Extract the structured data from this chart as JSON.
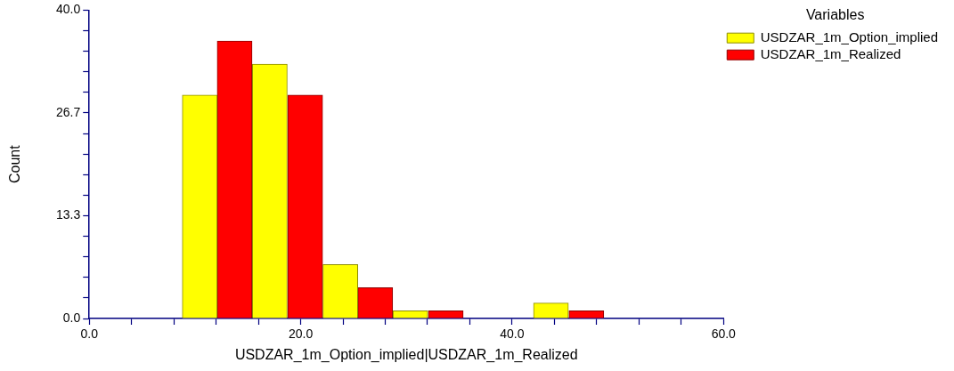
{
  "chart_data": {
    "type": "histogram",
    "xlabel": "USDZAR_1m_Option_implied|USDZAR_1m_Realized",
    "ylabel": "Count",
    "legend_title": "Variables",
    "legend": "top right",
    "bins": [
      8.8,
      15.4,
      22.1,
      28.7,
      35.4,
      42.0,
      48.7
    ],
    "series": [
      {
        "name": "USDZAR_1m_Option_implied",
        "color": "#ffff00",
        "values": [
          29,
          33,
          7,
          1,
          0,
          2
        ]
      },
      {
        "name": "USDZAR_1m_Realized",
        "color": "#ff0000",
        "values": [
          36,
          29,
          4,
          1,
          0,
          1
        ]
      }
    ],
    "xlim": [
      0,
      60
    ],
    "xticks": [
      {
        "value": 0,
        "label": "0.0"
      },
      {
        "value": 4,
        "label": null
      },
      {
        "value": 8,
        "label": null
      },
      {
        "value": 12,
        "label": null
      },
      {
        "value": 16,
        "label": null
      },
      {
        "value": 20,
        "label": "20.0"
      },
      {
        "value": 24,
        "label": null
      },
      {
        "value": 28,
        "label": null
      },
      {
        "value": 32,
        "label": null
      },
      {
        "value": 36,
        "label": null
      },
      {
        "value": 40,
        "label": "40.0"
      },
      {
        "value": 44,
        "label": null
      },
      {
        "value": 48,
        "label": null
      },
      {
        "value": 52,
        "label": null
      },
      {
        "value": 56,
        "label": null
      },
      {
        "value": 60,
        "label": "60.0"
      }
    ],
    "ylim": [
      0,
      40
    ],
    "yticks": [
      {
        "value": 0,
        "label": "0.0"
      },
      {
        "value": 2.67,
        "label": null
      },
      {
        "value": 5.33,
        "label": null
      },
      {
        "value": 8,
        "label": null
      },
      {
        "value": 10.67,
        "label": null
      },
      {
        "value": 13.33,
        "label": "13.3"
      },
      {
        "value": 16,
        "label": null
      },
      {
        "value": 18.67,
        "label": null
      },
      {
        "value": 21.33,
        "label": null
      },
      {
        "value": 24,
        "label": null
      },
      {
        "value": 26.67,
        "label": "26.7"
      },
      {
        "value": 29.33,
        "label": null
      },
      {
        "value": 32,
        "label": null
      },
      {
        "value": 34.67,
        "label": null
      },
      {
        "value": 37.33,
        "label": null
      },
      {
        "value": 40,
        "label": "40.0"
      }
    ],
    "grid": false
  }
}
